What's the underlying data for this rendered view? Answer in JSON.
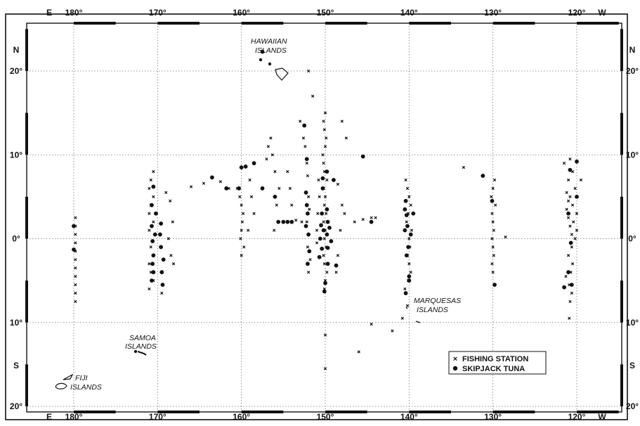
{
  "map": {
    "lon_ticks": [
      {
        "label": "180°",
        "lon": 180
      },
      {
        "label": "170°",
        "lon": 170
      },
      {
        "label": "160°",
        "lon": 160
      },
      {
        "label": "150°",
        "lon": 150
      },
      {
        "label": "140°",
        "lon": 140
      },
      {
        "label": "130°",
        "lon": 130
      },
      {
        "label": "120°",
        "lon": 120
      }
    ],
    "lat_ticks": [
      {
        "label": "20°",
        "lat": 20
      },
      {
        "label": "10°",
        "lat": 10
      },
      {
        "label": "0°",
        "lat": 0
      },
      {
        "label": "10°",
        "lat": -10
      },
      {
        "label": "20°",
        "lat": -20
      }
    ],
    "hemisphere": {
      "east": "E",
      "west": "W",
      "north": "N",
      "south": "S"
    },
    "islands": {
      "hawaiian": [
        "HAWAIIAN",
        "ISLANDS"
      ],
      "marquesas": [
        "MARQUESAS",
        "ISLANDS"
      ],
      "samoa": [
        "SAMOA",
        "ISLANDS"
      ],
      "fiji": [
        "FIJI",
        "ISLANDS"
      ]
    },
    "legend": {
      "station": "FISHING STATION",
      "tuna": "SKIPJACK TUNA"
    },
    "fishing_stations": [
      [
        179.8,
        2.5
      ],
      [
        179.8,
        1.5
      ],
      [
        179.8,
        0.5
      ],
      [
        179.8,
        -0.5
      ],
      [
        179.8,
        -1.5
      ],
      [
        179.8,
        -2.5
      ],
      [
        179.8,
        -3.5
      ],
      [
        179.8,
        -4.5
      ],
      [
        179.8,
        -5.5
      ],
      [
        179.8,
        -6.5
      ],
      [
        179.8,
        -7.5
      ],
      [
        170.5,
        8
      ],
      [
        170.8,
        7
      ],
      [
        171,
        6
      ],
      [
        170.5,
        5
      ],
      [
        170.8,
        4
      ],
      [
        171,
        3
      ],
      [
        170.5,
        2
      ],
      [
        171,
        1
      ],
      [
        170.8,
        -1
      ],
      [
        170.5,
        -2
      ],
      [
        171,
        -3
      ],
      [
        170.8,
        -4
      ],
      [
        170.5,
        -5
      ],
      [
        171,
        -6
      ],
      [
        169.5,
        -6.5
      ],
      [
        169,
        5.5
      ],
      [
        168.5,
        4.5
      ],
      [
        168.2,
        2
      ],
      [
        168.7,
        0
      ],
      [
        168.4,
        -2
      ],
      [
        168.1,
        -3
      ],
      [
        166,
        6.2
      ],
      [
        164.5,
        6.6
      ],
      [
        162.5,
        6.8
      ],
      [
        161.5,
        6
      ],
      [
        160.5,
        6
      ],
      [
        160.2,
        5
      ],
      [
        160,
        4
      ],
      [
        159.8,
        3
      ],
      [
        159.9,
        2
      ],
      [
        160,
        1
      ],
      [
        160.1,
        0
      ],
      [
        159.7,
        -1
      ],
      [
        160,
        -2
      ],
      [
        159,
        7
      ],
      [
        158.8,
        5
      ],
      [
        158.5,
        3
      ],
      [
        159.2,
        1
      ],
      [
        157,
        9.5
      ],
      [
        156.5,
        12
      ],
      [
        156.8,
        11
      ],
      [
        156.3,
        10
      ],
      [
        156,
        8
      ],
      [
        155.5,
        6
      ],
      [
        155.8,
        4
      ],
      [
        155,
        2
      ],
      [
        156.1,
        1
      ],
      [
        154.5,
        8
      ],
      [
        154.2,
        6
      ],
      [
        154,
        4
      ],
      [
        153.5,
        2.2
      ],
      [
        152.8,
        2
      ],
      [
        152,
        20
      ],
      [
        151.5,
        17
      ],
      [
        153,
        14
      ],
      [
        152.6,
        12
      ],
      [
        152.4,
        11
      ],
      [
        152.2,
        9
      ],
      [
        152.1,
        7.5
      ],
      [
        152,
        5
      ],
      [
        151.9,
        3.5
      ],
      [
        152.2,
        2
      ],
      [
        152,
        0.5
      ],
      [
        152.1,
        -1
      ],
      [
        151.8,
        -2.5
      ],
      [
        152,
        -4
      ],
      [
        150,
        15
      ],
      [
        150.2,
        14
      ],
      [
        150.1,
        13
      ],
      [
        149.9,
        12
      ],
      [
        150,
        11
      ],
      [
        150.3,
        10
      ],
      [
        150.2,
        9
      ],
      [
        150.1,
        8
      ],
      [
        149.8,
        7
      ],
      [
        150.2,
        6
      ],
      [
        150,
        5
      ],
      [
        150.1,
        4
      ],
      [
        149.9,
        3
      ],
      [
        150.2,
        2
      ],
      [
        150,
        1
      ],
      [
        150.1,
        0
      ],
      [
        149.9,
        -1
      ],
      [
        150.2,
        -2
      ],
      [
        150.1,
        -3
      ],
      [
        149.8,
        -4
      ],
      [
        150,
        -5
      ],
      [
        150.1,
        -6
      ],
      [
        150,
        -11.5
      ],
      [
        150,
        -15.5
      ],
      [
        150.8,
        7
      ],
      [
        150.7,
        5
      ],
      [
        150.9,
        3
      ],
      [
        151,
        1
      ],
      [
        151,
        -0.5
      ],
      [
        148,
        14
      ],
      [
        147.5,
        12
      ],
      [
        148.5,
        6.5
      ],
      [
        148,
        4
      ],
      [
        147.7,
        3
      ],
      [
        148.2,
        1
      ],
      [
        148.5,
        -2
      ],
      [
        148.7,
        -4
      ],
      [
        146.5,
        2
      ],
      [
        145.5,
        2.3
      ],
      [
        144.5,
        2.5
      ],
      [
        144,
        2.5
      ],
      [
        140.4,
        7
      ],
      [
        140.2,
        6
      ],
      [
        140,
        5
      ],
      [
        139.8,
        4
      ],
      [
        140.1,
        3
      ],
      [
        140.3,
        2
      ],
      [
        139.7,
        1
      ],
      [
        140,
        0
      ],
      [
        139.9,
        -1
      ],
      [
        140.2,
        -2
      ],
      [
        140,
        -3
      ],
      [
        139.8,
        -4
      ],
      [
        140.1,
        -5
      ],
      [
        140.5,
        -6
      ],
      [
        140.2,
        -8
      ],
      [
        140.8,
        -9.5
      ],
      [
        133.5,
        8.5
      ],
      [
        129.8,
        7
      ],
      [
        130,
        6
      ],
      [
        130.2,
        5
      ],
      [
        129.7,
        4
      ],
      [
        130.1,
        3
      ],
      [
        130,
        2
      ],
      [
        129.9,
        1
      ],
      [
        130.1,
        0
      ],
      [
        130,
        -1
      ],
      [
        129.9,
        -2
      ],
      [
        130.1,
        -3
      ],
      [
        130,
        -4
      ],
      [
        128.5,
        0.2
      ],
      [
        120.8,
        9.5
      ],
      [
        121.5,
        9
      ],
      [
        120.5,
        8
      ],
      [
        121,
        7
      ],
      [
        119.5,
        7
      ],
      [
        120.2,
        6
      ],
      [
        121.2,
        5.5
      ],
      [
        120.8,
        5
      ],
      [
        121,
        4.5
      ],
      [
        120.5,
        4
      ],
      [
        121.2,
        3.5
      ],
      [
        120,
        3
      ],
      [
        121,
        2.5
      ],
      [
        120.4,
        2
      ],
      [
        120.8,
        1.5
      ],
      [
        120,
        1
      ],
      [
        120.6,
        0.5
      ],
      [
        120.2,
        0
      ],
      [
        120.6,
        -1
      ],
      [
        121,
        -2
      ],
      [
        120.5,
        -3
      ],
      [
        120.7,
        -4
      ],
      [
        121.3,
        -4.5
      ],
      [
        120.9,
        -5.5
      ],
      [
        120.6,
        -6.5
      ],
      [
        120.8,
        -7.5
      ],
      [
        120.9,
        -9.5
      ],
      [
        144.5,
        -10.2
      ],
      [
        146,
        -13.5
      ],
      [
        142,
        -11
      ]
    ],
    "skipjack_tuna": [
      [
        180,
        1.5
      ],
      [
        180,
        -1.3
      ],
      [
        170.5,
        6.2
      ],
      [
        170.7,
        4
      ],
      [
        170.2,
        3
      ],
      [
        170.7,
        1.5
      ],
      [
        170.3,
        0.5
      ],
      [
        170.6,
        -0.3
      ],
      [
        170.5,
        -2
      ],
      [
        170.6,
        -3
      ],
      [
        170.5,
        -4
      ],
      [
        170.7,
        -5
      ],
      [
        169.4,
        -5.5
      ],
      [
        169.5,
        -4
      ],
      [
        169.3,
        -2.5
      ],
      [
        169.6,
        -1
      ],
      [
        169.7,
        0.5
      ],
      [
        169.6,
        1.8
      ],
      [
        163.5,
        7.3
      ],
      [
        161.8,
        6
      ],
      [
        160.3,
        6
      ],
      [
        160,
        8.5
      ],
      [
        159.5,
        8.6
      ],
      [
        158.5,
        9
      ],
      [
        157.5,
        6
      ],
      [
        156,
        5
      ],
      [
        155.6,
        2
      ],
      [
        155,
        2
      ],
      [
        154.5,
        2
      ],
      [
        154,
        2
      ],
      [
        152.5,
        13.5
      ],
      [
        152.2,
        9.5
      ],
      [
        152.3,
        5.5
      ],
      [
        152.2,
        4
      ],
      [
        152.1,
        3
      ],
      [
        152.3,
        1.5
      ],
      [
        152,
        0.5
      ],
      [
        151.9,
        -1.5
      ],
      [
        152.1,
        -3
      ],
      [
        149.8,
        8
      ],
      [
        150.3,
        7.2
      ],
      [
        150.3,
        6
      ],
      [
        149.8,
        3.5
      ],
      [
        150.4,
        3
      ],
      [
        149.7,
        2
      ],
      [
        150.5,
        1.6
      ],
      [
        149.5,
        1.3
      ],
      [
        150.2,
        1
      ],
      [
        149.8,
        0.5
      ],
      [
        150.6,
        0
      ],
      [
        149.3,
        -0.3
      ],
      [
        149.7,
        -1.1
      ],
      [
        150.4,
        -1.2
      ],
      [
        150.7,
        -2.2
      ],
      [
        149.7,
        -3
      ],
      [
        150,
        -5.3
      ],
      [
        150.1,
        -6.3
      ],
      [
        148.7,
        -3.2
      ],
      [
        157.5,
        22.3
      ],
      [
        145.5,
        9.8
      ],
      [
        149,
        7
      ],
      [
        144.5,
        2
      ],
      [
        140.4,
        4.5
      ],
      [
        140.5,
        3.5
      ],
      [
        139.5,
        3
      ],
      [
        140.3,
        2.8
      ],
      [
        140.2,
        1.5
      ],
      [
        140.5,
        1
      ],
      [
        139.8,
        0.5
      ],
      [
        140.1,
        -1
      ],
      [
        140.3,
        -2
      ],
      [
        140,
        -4.5
      ],
      [
        140,
        -5
      ],
      [
        140.4,
        -6.5
      ],
      [
        131.2,
        7.5
      ],
      [
        130.1,
        4.5
      ],
      [
        129.8,
        -5.5
      ],
      [
        120,
        9.2
      ],
      [
        120.8,
        8.2
      ],
      [
        120,
        5
      ],
      [
        121,
        3
      ],
      [
        120.7,
        -0.5
      ],
      [
        121,
        -4
      ],
      [
        120.6,
        -5.5
      ],
      [
        121.5,
        -5.8
      ]
    ]
  }
}
